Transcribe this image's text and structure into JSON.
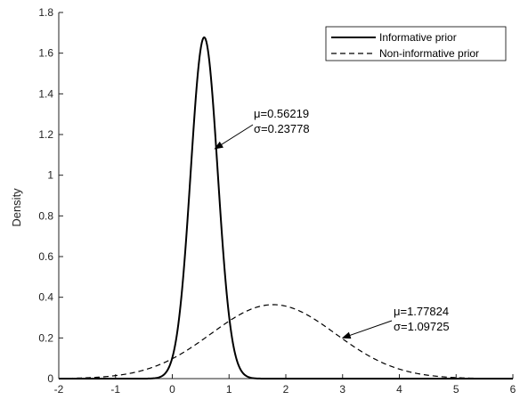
{
  "chart_data": {
    "type": "line",
    "ylabel": "Density",
    "xlim": [
      -2,
      6
    ],
    "ylim": [
      0,
      1.8
    ],
    "xticks": [
      "-2",
      "-1",
      "0",
      "1",
      "2",
      "3",
      "4",
      "5",
      "6"
    ],
    "yticks": [
      "0",
      "0.2",
      "0.4",
      "0.6",
      "0.8",
      "1",
      "1.2",
      "1.4",
      "1.6",
      "1.8"
    ],
    "grid": false,
    "legend_position": "top-right",
    "series": [
      {
        "name": "Informative prior",
        "style": "solid",
        "mean": 0.56219,
        "sd": 0.23778
      },
      {
        "name": "Non-informative prior",
        "style": "dashed",
        "mean": 1.77824,
        "sd": 1.09725
      }
    ],
    "annotations": [
      {
        "line1": "μ=0.56219",
        "line2": "σ=0.23778",
        "arrow_to": [
          0.75,
          1.13
        ]
      },
      {
        "line1": "μ=1.77824",
        "line2": "σ=1.09725",
        "arrow_to": [
          3.0,
          0.2
        ]
      }
    ]
  }
}
